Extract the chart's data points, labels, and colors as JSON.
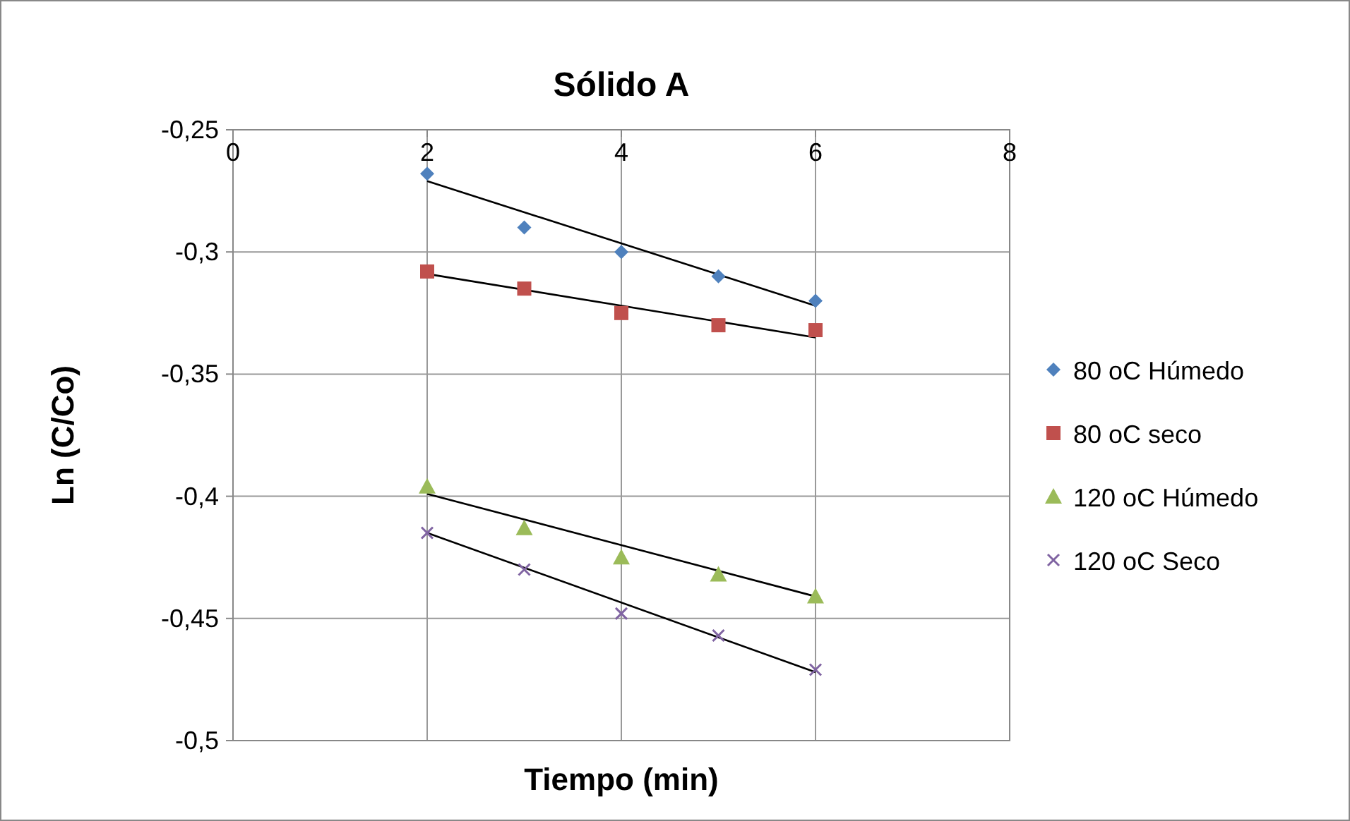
{
  "chart_data": {
    "type": "scatter",
    "title": "Sólido A",
    "xlabel": "Tiempo (min)",
    "ylabel": "Ln (C/Co)",
    "xlim": [
      0,
      8
    ],
    "xticks": [
      0,
      2,
      4,
      6,
      8
    ],
    "ylim": [
      -0.5,
      -0.25
    ],
    "yticks": [
      {
        "value": -0.5,
        "label": "-0,5"
      },
      {
        "value": -0.45,
        "label": "-0,45"
      },
      {
        "value": -0.4,
        "label": "-0,4"
      },
      {
        "value": -0.35,
        "label": "-0,35"
      },
      {
        "value": -0.3,
        "label": "-0,3"
      },
      {
        "value": -0.25,
        "label": "-0,25"
      }
    ],
    "grid": true,
    "legend": "right",
    "series": [
      {
        "name": "80 oC Húmedo",
        "color": "#4f81bd",
        "marker": "diamond",
        "x": [
          2,
          3,
          4,
          5,
          6
        ],
        "values": [
          -0.268,
          -0.29,
          -0.3,
          -0.31,
          -0.32
        ]
      },
      {
        "name": "80 oC seco",
        "color": "#c0504d",
        "marker": "square",
        "x": [
          2,
          3,
          4,
          5,
          6
        ],
        "values": [
          -0.308,
          -0.315,
          -0.325,
          -0.33,
          -0.332
        ]
      },
      {
        "name": "120 oC Húmedo",
        "color": "#9bbb59",
        "marker": "triangle",
        "x": [
          2,
          3,
          4,
          5,
          6
        ],
        "values": [
          -0.396,
          -0.413,
          -0.425,
          -0.432,
          -0.441
        ]
      },
      {
        "name": "120 oC Seco",
        "color": "#8064a2",
        "marker": "cross",
        "x": [
          2,
          3,
          4,
          5,
          6
        ],
        "values": [
          -0.415,
          -0.43,
          -0.448,
          -0.457,
          -0.471
        ]
      },
      {
        "type": "line",
        "color": "#000000",
        "x": [
          2,
          6
        ],
        "values": [
          -0.271,
          -0.322
        ]
      },
      {
        "type": "line",
        "color": "#000000",
        "x": [
          2,
          6
        ],
        "values": [
          -0.309,
          -0.335
        ]
      },
      {
        "type": "line",
        "color": "#000000",
        "x": [
          2,
          6
        ],
        "values": [
          -0.399,
          -0.441
        ]
      },
      {
        "type": "line",
        "color": "#000000",
        "x": [
          2,
          6
        ],
        "values": [
          -0.415,
          -0.472
        ]
      }
    ]
  }
}
